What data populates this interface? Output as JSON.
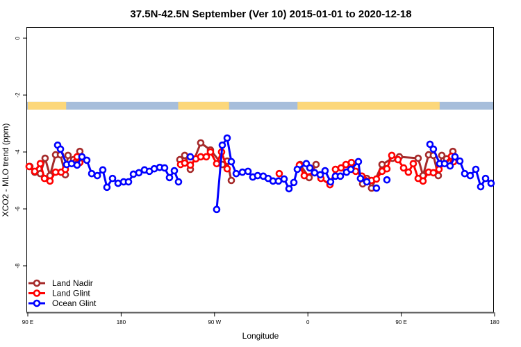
{
  "chart_data": {
    "type": "line",
    "title": "37.5N-42.5N September (Ver 10)   2015-01-01 to 2020-12-18",
    "xlabel": "Longitude",
    "ylabel": "XCO2 - MLO trend (ppm)",
    "xlim": [
      90,
      540
    ],
    "ylim": [
      -9.7,
      0.4
    ],
    "x_ticks": [
      {
        "value": 90,
        "label": "90 E"
      },
      {
        "value": 180,
        "label": "180"
      },
      {
        "value": 270,
        "label": "90 W"
      },
      {
        "value": 360,
        "label": "0"
      },
      {
        "value": 450,
        "label": "90 E"
      },
      {
        "value": 540,
        "label": "180"
      }
    ],
    "y_ticks": [
      {
        "value": 0,
        "label": "0"
      },
      {
        "value": -2,
        "label": "-2"
      },
      {
        "value": -4,
        "label": "-4"
      },
      {
        "value": -6,
        "label": "-6"
      },
      {
        "value": -8,
        "label": "-8"
      }
    ],
    "grid": false,
    "legend_position": "bottom-left",
    "map_band": {
      "y_range": [
        -2.51,
        -2.24
      ],
      "land_color": "#fcd77a",
      "ocean_color": "#a7bedb",
      "land_lon_ranges": [
        [
          90,
          127
        ],
        [
          235,
          284
        ],
        [
          350,
          487
        ]
      ]
    },
    "series": [
      {
        "name": "Land Nadir",
        "color": "#a52a2a",
        "points": [
          [
            92.0,
            -4.51
          ],
          [
            96.7,
            -4.71
          ],
          [
            102.1,
            -4.76
          ],
          [
            106.7,
            -4.22
          ],
          [
            111.4,
            -4.83
          ],
          [
            116.8,
            -4.1
          ],
          [
            121.5,
            -4.1
          ],
          [
            126.2,
            -4.8
          ],
          [
            128.8,
            -4.12
          ],
          [
            134.2,
            -4.27
          ],
          [
            140.2,
            -3.98
          ],
          null,
          [
            236.6,
            -4.27
          ],
          [
            241.3,
            -4.12
          ],
          [
            246.7,
            -4.61
          ],
          [
            256.7,
            -3.68
          ],
          [
            266.1,
            -3.93
          ],
          [
            277.5,
            -4.44
          ],
          [
            282.2,
            -4.32
          ],
          [
            286.2,
            -5.0
          ],
          null,
          [
            352.5,
            -4.44
          ],
          [
            361.2,
            -4.9
          ],
          [
            367.9,
            -4.44
          ],
          null,
          [
            412.8,
            -5.12
          ],
          [
            416.8,
            -4.93
          ],
          [
            421.4,
            -5.27
          ],
          [
            431.5,
            -4.44
          ],
          [
            441.5,
            -4.22
          ],
          [
            448.2,
            -4.17
          ],
          [
            466.3,
            -4.22
          ],
          [
            471.0,
            -4.83
          ],
          [
            476.4,
            -4.1
          ],
          [
            481.0,
            -4.12
          ],
          [
            485.7,
            -4.83
          ],
          [
            489.1,
            -4.12
          ],
          [
            493.8,
            -4.24
          ],
          [
            499.8,
            -3.98
          ]
        ]
      },
      {
        "name": "Land Glint",
        "color": "#ff0000",
        "points": [
          [
            91.3,
            -4.51
          ],
          [
            96.7,
            -4.68
          ],
          [
            102.1,
            -4.41
          ],
          [
            106.1,
            -4.93
          ],
          [
            111.4,
            -5.02
          ],
          [
            116.8,
            -4.71
          ],
          [
            122.1,
            -4.71
          ],
          [
            126.2,
            -4.61
          ],
          [
            137.5,
            -4.17
          ],
          [
            140.2,
            -4.37
          ],
          null,
          [
            237.3,
            -4.44
          ],
          [
            241.3,
            -4.39
          ],
          [
            246.7,
            -4.46
          ],
          [
            252.0,
            -4.24
          ],
          [
            256.7,
            -4.17
          ],
          [
            262.1,
            -4.17
          ],
          [
            266.1,
            -4.0
          ],
          [
            272.1,
            -4.41
          ],
          [
            276.8,
            -4.0
          ],
          [
            282.2,
            -4.59
          ],
          null,
          [
            332.4,
            -4.76
          ],
          null,
          [
            351.8,
            -4.46
          ],
          [
            356.5,
            -4.83
          ],
          [
            366.5,
            -4.73
          ],
          [
            372.6,
            -4.93
          ],
          [
            381.3,
            -5.15
          ],
          [
            386.6,
            -4.61
          ],
          [
            392.0,
            -4.56
          ],
          [
            396.7,
            -4.44
          ],
          [
            402.0,
            -4.37
          ],
          [
            406.1,
            -4.68
          ],
          [
            412.1,
            -4.85
          ],
          [
            421.4,
            -5.0
          ],
          [
            426.1,
            -4.95
          ],
          [
            431.5,
            -4.68
          ],
          [
            436.2,
            -4.59
          ],
          [
            440.9,
            -4.12
          ],
          [
            446.9,
            -4.27
          ],
          [
            452.3,
            -4.56
          ],
          [
            456.9,
            -4.71
          ],
          [
            461.6,
            -4.41
          ],
          [
            466.3,
            -4.93
          ],
          [
            471.0,
            -5.02
          ],
          [
            476.4,
            -4.71
          ],
          [
            481.0,
            -4.73
          ],
          [
            486.4,
            -4.61
          ],
          [
            498.5,
            -4.15
          ],
          [
            500.5,
            -4.34
          ]
        ]
      },
      {
        "name": "Ocean Glint",
        "color": "#0000ff",
        "points": [
          [
            118.8,
            -3.76
          ],
          [
            121.5,
            -3.9
          ],
          [
            127.5,
            -4.44
          ],
          [
            132.2,
            -4.41
          ],
          [
            137.5,
            -4.46
          ],
          [
            142.2,
            -4.17
          ],
          [
            146.9,
            -4.29
          ],
          [
            151.6,
            -4.76
          ],
          [
            157.0,
            -4.83
          ],
          [
            162.3,
            -4.63
          ],
          [
            166.3,
            -5.24
          ],
          [
            171.7,
            -4.93
          ],
          [
            177.0,
            -5.1
          ],
          [
            182.4,
            -5.05
          ],
          [
            187.1,
            -5.05
          ],
          [
            191.8,
            -4.78
          ],
          [
            197.1,
            -4.73
          ],
          [
            202.5,
            -4.63
          ],
          [
            207.2,
            -4.68
          ],
          [
            211.9,
            -4.59
          ],
          [
            217.2,
            -4.54
          ],
          [
            221.9,
            -4.56
          ],
          [
            226.6,
            -4.9
          ],
          [
            231.3,
            -4.66
          ],
          [
            235.3,
            -5.05
          ],
          null,
          [
            246.7,
            -4.17
          ],
          null,
          [
            272.1,
            -6.02
          ],
          [
            277.5,
            -3.76
          ],
          [
            282.2,
            -3.51
          ],
          [
            286.2,
            -4.34
          ],
          [
            290.9,
            -4.76
          ],
          [
            296.9,
            -4.71
          ],
          [
            302.3,
            -4.68
          ],
          [
            306.9,
            -4.88
          ],
          [
            311.6,
            -4.83
          ],
          [
            317.0,
            -4.85
          ],
          [
            321.7,
            -4.93
          ],
          [
            326.4,
            -5.02
          ],
          [
            331.7,
            -5.02
          ],
          [
            337.1,
            -4.95
          ],
          [
            341.8,
            -5.29
          ],
          [
            346.5,
            -5.07
          ],
          [
            349.8,
            -4.61
          ],
          [
            358.5,
            -4.41
          ],
          [
            361.9,
            -4.56
          ],
          [
            366.5,
            -4.73
          ],
          [
            371.9,
            -4.8
          ],
          [
            376.6,
            -4.66
          ],
          [
            381.9,
            -5.05
          ],
          [
            386.6,
            -4.85
          ],
          [
            391.3,
            -4.85
          ],
          [
            397.3,
            -4.71
          ],
          [
            401.4,
            -4.61
          ],
          [
            408.7,
            -4.34
          ],
          [
            410.7,
            -4.93
          ],
          [
            416.8,
            -5.05
          ],
          null,
          [
            426.1,
            -5.27
          ],
          null,
          [
            436.2,
            -4.98
          ],
          null,
          [
            477.7,
            -3.73
          ],
          [
            481.0,
            -3.9
          ],
          [
            487.1,
            -4.41
          ],
          [
            491.8,
            -4.41
          ],
          [
            497.1,
            -4.49
          ],
          [
            501.8,
            -4.17
          ],
          [
            506.5,
            -4.32
          ],
          [
            511.2,
            -4.76
          ],
          [
            516.5,
            -4.83
          ],
          [
            521.9,
            -4.61
          ],
          [
            526.6,
            -5.22
          ],
          [
            531.3,
            -4.93
          ],
          [
            536.6,
            -5.1
          ]
        ]
      }
    ]
  }
}
